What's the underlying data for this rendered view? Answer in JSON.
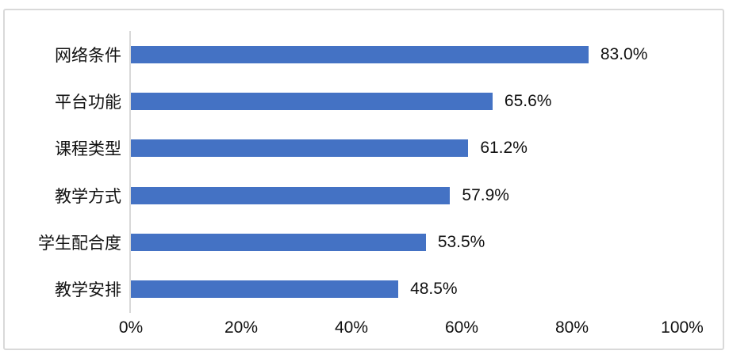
{
  "chart_data": {
    "type": "bar",
    "orientation": "horizontal",
    "categories": [
      "网络条件",
      "平台功能",
      "课程类型",
      "教学方式",
      "学生配合度",
      "教学安排"
    ],
    "values": [
      83.0,
      65.6,
      61.2,
      57.9,
      53.5,
      48.5
    ],
    "data_labels": [
      "83.0%",
      "65.6%",
      "61.2%",
      "57.9%",
      "53.5%",
      "48.5%"
    ],
    "x_tick_labels": [
      "0%",
      "20%",
      "40%",
      "60%",
      "80%",
      "100%"
    ],
    "xlim": [
      0,
      100
    ],
    "grid": false,
    "legend": false,
    "bar_color": "#4472C4",
    "axis_line_color": "#D9D9D9",
    "frame_border_color": "#D9D9D9",
    "text_color": "#111111"
  }
}
